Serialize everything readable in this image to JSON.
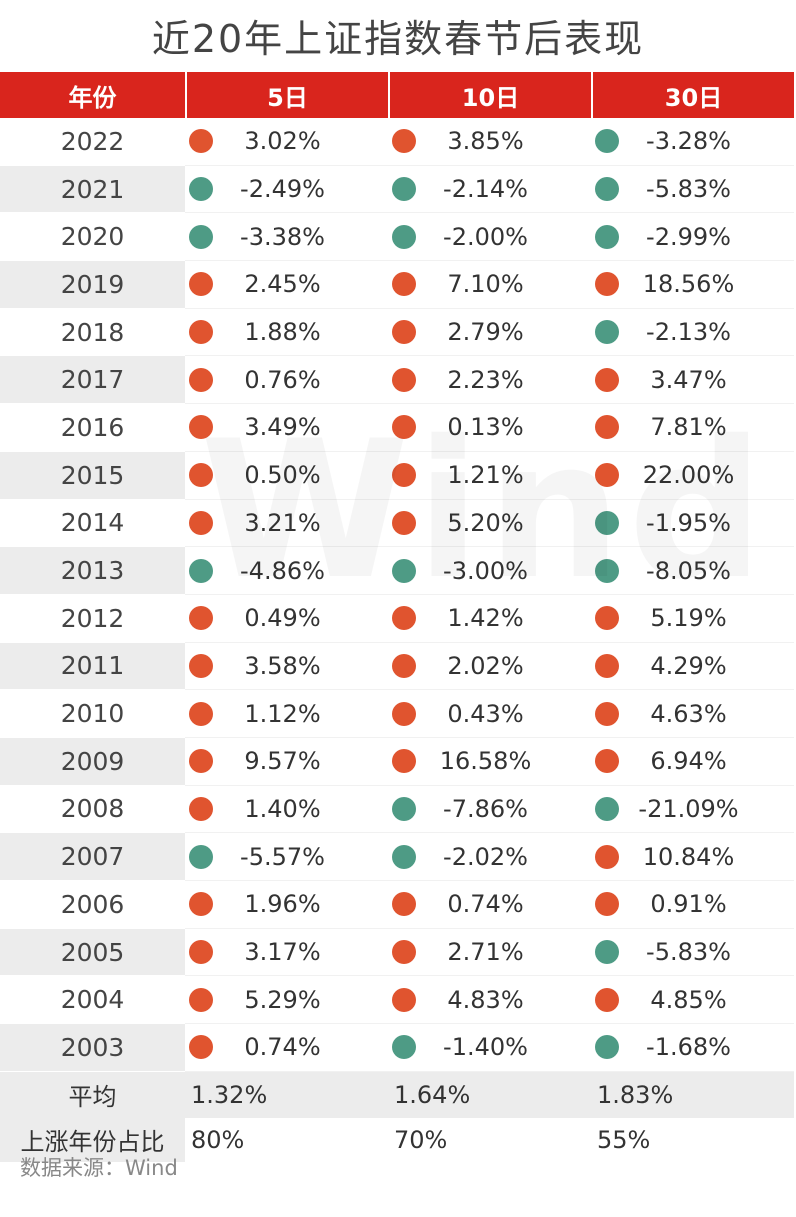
{
  "title": "近20年上证指数春节后表现",
  "watermark": "Wind",
  "colors": {
    "header_bg": "#d9251d",
    "up": "#e0542f",
    "down": "#4e9b85"
  },
  "chart_data": {
    "type": "table",
    "title": "近20年上证指数春节后表现",
    "columns": [
      "年份",
      "5日",
      "10日",
      "30日"
    ],
    "rows": [
      {
        "year": "2022",
        "d5": "3.02%",
        "d10": "3.85%",
        "d30": "-3.28%"
      },
      {
        "year": "2021",
        "d5": "-2.49%",
        "d10": "-2.14%",
        "d30": "-5.83%"
      },
      {
        "year": "2020",
        "d5": "-3.38%",
        "d10": "-2.00%",
        "d30": "-2.99%"
      },
      {
        "year": "2019",
        "d5": "2.45%",
        "d10": "7.10%",
        "d30": "18.56%"
      },
      {
        "year": "2018",
        "d5": "1.88%",
        "d10": "2.79%",
        "d30": "-2.13%"
      },
      {
        "year": "2017",
        "d5": "0.76%",
        "d10": "2.23%",
        "d30": "3.47%"
      },
      {
        "year": "2016",
        "d5": "3.49%",
        "d10": "0.13%",
        "d30": "7.81%"
      },
      {
        "year": "2015",
        "d5": "0.50%",
        "d10": "1.21%",
        "d30": "22.00%"
      },
      {
        "year": "2014",
        "d5": "3.21%",
        "d10": "5.20%",
        "d30": "-1.95%"
      },
      {
        "year": "2013",
        "d5": "-4.86%",
        "d10": "-3.00%",
        "d30": "-8.05%"
      },
      {
        "year": "2012",
        "d5": "0.49%",
        "d10": "1.42%",
        "d30": "5.19%"
      },
      {
        "year": "2011",
        "d5": "3.58%",
        "d10": "2.02%",
        "d30": "4.29%"
      },
      {
        "year": "2010",
        "d5": "1.12%",
        "d10": "0.43%",
        "d30": "4.63%"
      },
      {
        "year": "2009",
        "d5": "9.57%",
        "d10": "16.58%",
        "d30": "6.94%"
      },
      {
        "year": "2008",
        "d5": "1.40%",
        "d10": "-7.86%",
        "d30": "-21.09%"
      },
      {
        "year": "2007",
        "d5": "-5.57%",
        "d10": "-2.02%",
        "d30": "10.84%"
      },
      {
        "year": "2006",
        "d5": "1.96%",
        "d10": "0.74%",
        "d30": "0.91%"
      },
      {
        "year": "2005",
        "d5": "3.17%",
        "d10": "2.71%",
        "d30": "-5.83%"
      },
      {
        "year": "2004",
        "d5": "5.29%",
        "d10": "4.83%",
        "d30": "4.85%"
      },
      {
        "year": "2003",
        "d5": "0.74%",
        "d10": "-1.40%",
        "d30": "-1.68%"
      }
    ],
    "average": {
      "label": "平均",
      "d5": "1.32%",
      "d10": "1.64%",
      "d30": "1.83%"
    },
    "up_ratio": {
      "label": "上涨年份占比",
      "d5": "80%",
      "d10": "70%",
      "d30": "55%"
    }
  },
  "source": "数据来源：Wind"
}
